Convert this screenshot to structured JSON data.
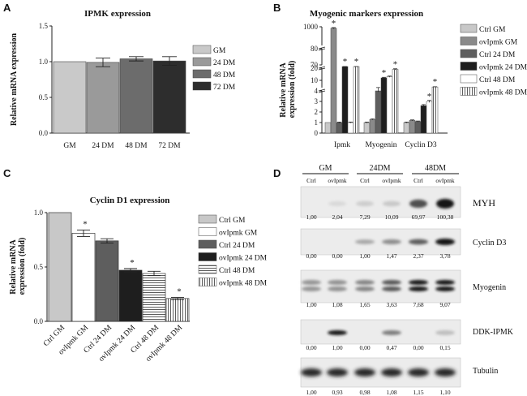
{
  "panel_letters": {
    "a": "A",
    "b": "B",
    "c": "C",
    "d": "D"
  },
  "colors": {
    "gm": "#c9c9c9",
    "dm24": "#9a9a9a",
    "dm48": "#6c6c6c",
    "dm72": "#2d2d2d",
    "ctrl_gm": "#c8c8c8",
    "ov_gm": "#8a8a8a",
    "ctrl_24": "#5e5e5e",
    "ov_24": "#1e1e1e",
    "ctrl_48": "#ffffff",
    "ov_48": "#ffffff"
  },
  "chart_data": [
    {
      "id": "A",
      "type": "bar",
      "title": "IPMK expression",
      "ylabel": "Relative mRNA expression",
      "xlabel": "",
      "categories": [
        "GM",
        "24 DM",
        "48 DM",
        "72 DM"
      ],
      "values": [
        1.0,
        0.99,
        1.04,
        1.01
      ],
      "errors": [
        0,
        0.06,
        0.03,
        0.06
      ],
      "ylim": [
        0,
        1.5
      ],
      "yticks": [
        "0.0",
        "0.5",
        "1.0",
        "1.5"
      ],
      "legend": [
        "GM",
        "24 DM",
        "48 DM",
        "72 DM"
      ]
    },
    {
      "id": "B",
      "type": "bar",
      "title": "Myogenic markers expression",
      "ylabel": "Relative mRNA expression (fold)",
      "xlabel": "",
      "categories": [
        "Ipmk",
        "Myogenin",
        "Cyclin D3"
      ],
      "series": [
        {
          "name": "Ctrl GM",
          "values": [
            1,
            1,
            1
          ],
          "errors": [
            0,
            0.05,
            0.05
          ],
          "significant": [
            false,
            false,
            false
          ]
        },
        {
          "name": "ovIpmk GM",
          "values": [
            930,
            1.3,
            1.2
          ],
          "errors": [
            30,
            0.05,
            0.05
          ],
          "significant": [
            true,
            false,
            false
          ]
        },
        {
          "name": "Ctrl 24 DM",
          "values": [
            1,
            4,
            1.1
          ],
          "errors": [
            0.05,
            0.1,
            0.05
          ],
          "significant": [
            false,
            false,
            false
          ]
        },
        {
          "name": "ovIpmk 24 DM",
          "values": [
            68,
            12,
            2.6
          ],
          "errors": [
            1,
            0.5,
            0.1
          ],
          "significant": [
            true,
            true,
            false
          ]
        },
        {
          "name": "Ctrl 48 DM",
          "values": [
            1,
            13,
            3
          ],
          "errors": [
            0.05,
            0.5,
            0.1
          ],
          "significant": [
            false,
            false,
            true
          ]
        },
        {
          "name": "ovIpmk 48 DM",
          "values": [
            68,
            19,
            4.6
          ],
          "errors": [
            1,
            0.5,
            0.15
          ],
          "significant": [
            true,
            true,
            true
          ]
        }
      ],
      "ytick_labels": [
        "0",
        "1",
        "2",
        "3",
        "4",
        "10",
        "20",
        "70",
        "80",
        "1000"
      ],
      "significance_marker": "*"
    },
    {
      "id": "C",
      "type": "bar",
      "title": "Cyclin D1 expression",
      "ylabel": "Relative mRNA expression (fold)",
      "xlabel": "",
      "categories": [
        "Ctrl GM",
        "ovIpmk GM",
        "Ctrl 24 DM",
        "ovIpmk 24 DM",
        "Ctrl 48 DM",
        "ovIpmk 48 DM"
      ],
      "values": [
        1.0,
        0.81,
        0.74,
        0.47,
        0.44,
        0.21
      ],
      "errors": [
        0,
        0.03,
        0.02,
        0.015,
        0.02,
        0.01
      ],
      "significant": [
        false,
        true,
        false,
        true,
        false,
        true
      ],
      "ylim": [
        0,
        1.0
      ],
      "yticks": [
        "0.0",
        "0.5",
        "1.0"
      ],
      "legend": [
        "Ctrl GM",
        "ovIpmk GM",
        "Ctrl 24 DM",
        "ovIpmk 24 DM",
        "Ctrl 48 DM",
        "ovIpmk 48 DM"
      ],
      "significance_marker": "*"
    },
    {
      "id": "D",
      "type": "table",
      "groups": [
        "GM",
        "24DM",
        "48DM"
      ],
      "lanes": [
        "Ctrl",
        "ovIpmk",
        "Ctrl",
        "ovIpmk",
        "Ctrl",
        "ovIpmk"
      ],
      "rows": [
        {
          "protein": "MYH",
          "values": [
            "1,00",
            "2,04",
            "7,29",
            "10,09",
            "69,97",
            "100,38"
          ]
        },
        {
          "protein": "Cyclin D3",
          "values": [
            "0,00",
            "0,00",
            "1,00",
            "1,47",
            "2,37",
            "3,78"
          ]
        },
        {
          "protein": "Myogenin",
          "values": [
            "1,00",
            "1,08",
            "1,65",
            "3,63",
            "7,68",
            "9,07"
          ]
        },
        {
          "protein": "DDK-IPMK",
          "values": [
            "0,00",
            "1,00",
            "0,00",
            "0,47",
            "0,00",
            "0,15"
          ]
        },
        {
          "protein": "Tubulin",
          "values": [
            "1,00",
            "0,93",
            "0,98",
            "1,08",
            "1,15",
            "1,10"
          ]
        }
      ]
    }
  ]
}
